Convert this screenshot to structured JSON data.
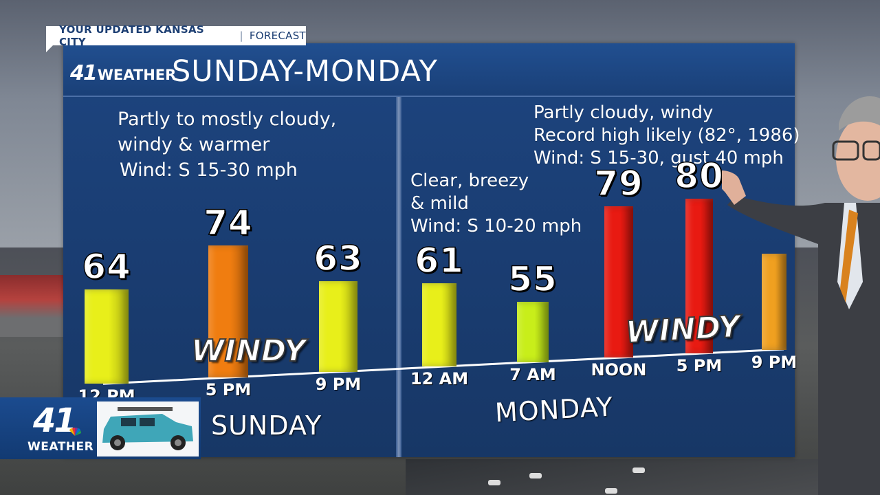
{
  "banner": {
    "primary": "YOUR UPDATED KANSAS CITY",
    "secondary": "FORECAST"
  },
  "logo_small": {
    "number": "41",
    "word": "WEATHER"
  },
  "title": "SUNDAY-MONDAY",
  "sunday_desc": [
    "Partly to mostly cloudy,",
    "windy & warmer",
    "Wind: S 15-30 mph"
  ],
  "monday_night_desc": [
    "Clear, breezy",
    "& mild",
    "Wind: S 10-20 mph"
  ],
  "monday_desc": [
    "Partly cloudy, windy",
    "Record high likely (82°, 1986)",
    "Wind: S 15-30, gust 40 mph"
  ],
  "chart_data": {
    "type": "bar",
    "categories": [
      "12 PM",
      "5 PM",
      "9 PM",
      "12 AM",
      "7 AM",
      "NOON",
      "5 PM",
      "9 PM"
    ],
    "values": [
      64,
      74,
      63,
      61,
      55,
      79,
      80,
      null
    ],
    "value_labels": [
      "64",
      "74",
      "63",
      "61",
      "55",
      "79",
      "80",
      ""
    ],
    "bar_colors": [
      "#e8ef1a",
      "#f07d10",
      "#e8ef1a",
      "#e8ef1a",
      "#c8ee1a",
      "#e81a12",
      "#e81a12",
      "#f0a020"
    ],
    "day_labels": [
      "SUNDAY",
      "MONDAY"
    ]
  },
  "windy_labels": [
    "WINDY",
    "WINDY"
  ],
  "brand": {
    "number": "41",
    "word": "WEATHER"
  }
}
